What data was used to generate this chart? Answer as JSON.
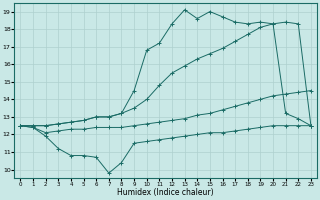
{
  "xlabel": "Humidex (Indice chaleur)",
  "xlim": [
    -0.5,
    23.5
  ],
  "ylim": [
    9.5,
    19.5
  ],
  "xticks": [
    0,
    1,
    2,
    3,
    4,
    5,
    6,
    7,
    8,
    9,
    10,
    11,
    12,
    13,
    14,
    15,
    16,
    17,
    18,
    19,
    20,
    21,
    22,
    23
  ],
  "yticks": [
    10,
    11,
    12,
    13,
    14,
    15,
    16,
    17,
    18,
    19
  ],
  "bg_color": "#c9e8e6",
  "grid_color": "#aed0ce",
  "line_color": "#1a6b65",
  "line1_y": [
    12.5,
    12.4,
    11.9,
    11.2,
    10.8,
    10.8,
    10.7,
    9.8,
    10.4,
    11.5,
    11.6,
    11.7,
    11.8,
    11.9,
    12.0,
    12.1,
    12.1,
    12.2,
    12.3,
    12.4,
    12.5,
    12.5,
    12.5,
    12.5
  ],
  "line2_y": [
    12.5,
    12.4,
    12.1,
    12.2,
    12.3,
    12.3,
    12.4,
    12.4,
    12.4,
    12.5,
    12.6,
    12.7,
    12.8,
    12.9,
    13.1,
    13.2,
    13.4,
    13.6,
    13.8,
    14.0,
    14.2,
    14.3,
    14.4,
    14.5
  ],
  "line3_y": [
    12.5,
    12.5,
    12.5,
    12.6,
    12.7,
    12.8,
    13.0,
    13.0,
    13.2,
    13.5,
    14.0,
    14.8,
    15.5,
    15.9,
    16.3,
    16.6,
    16.9,
    17.3,
    17.7,
    18.1,
    18.3,
    18.4,
    18.3,
    12.5
  ],
  "line4_y": [
    12.5,
    12.5,
    12.5,
    12.6,
    12.7,
    12.8,
    13.0,
    13.0,
    13.2,
    14.5,
    16.8,
    17.2,
    18.3,
    19.1,
    18.6,
    19.0,
    18.7,
    18.4,
    18.3,
    18.4,
    18.3,
    13.2,
    12.9,
    12.5
  ]
}
